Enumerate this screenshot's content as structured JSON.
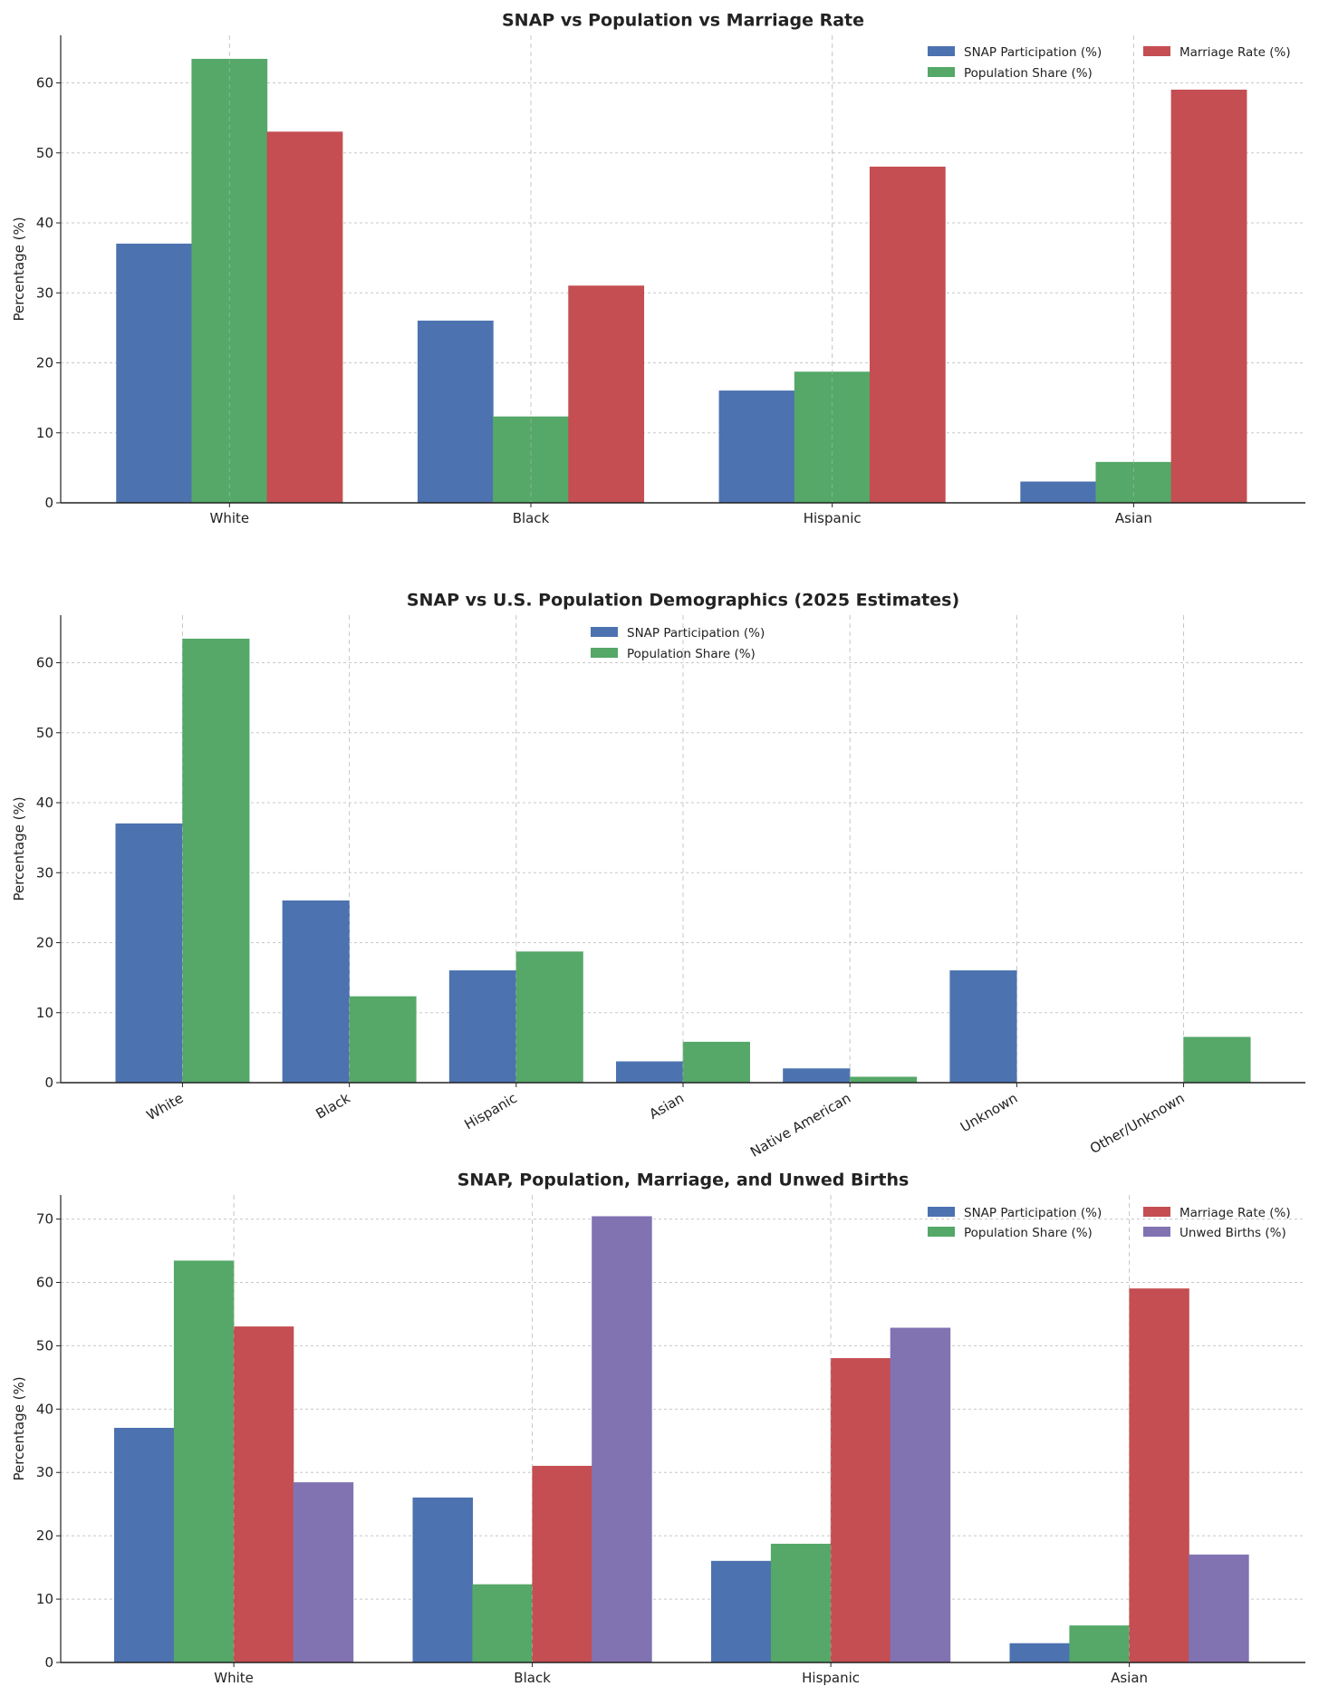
{
  "colors": {
    "SNAP Participation (%)": "#4c72b0",
    "Population Share (%)": "#55a868",
    "Marriage Rate (%)": "#c44e52",
    "Unwed Births (%)": "#8172b2"
  },
  "chart_data": [
    {
      "type": "bar",
      "title": "SNAP vs Population vs Marriage Rate",
      "xlabel": "",
      "ylabel": "Percentage (%)",
      "categories": [
        "White",
        "Black",
        "Hispanic",
        "Asian"
      ],
      "series": [
        {
          "name": "SNAP Participation (%)",
          "values": [
            37,
            26,
            16,
            3
          ]
        },
        {
          "name": "Population Share (%)",
          "values": [
            63.4,
            12.3,
            18.7,
            5.8
          ]
        },
        {
          "name": "Marriage Rate (%)",
          "values": [
            53,
            31,
            48,
            59
          ]
        }
      ],
      "ylim": [
        0,
        66.8
      ],
      "yticks": [
        0,
        10,
        20,
        30,
        40,
        50,
        60
      ],
      "grid": true,
      "legend": {
        "placement": "top-right",
        "columns": 2
      }
    },
    {
      "type": "bar",
      "title": "SNAP vs U.S. Population Demographics (2025 Estimates)",
      "xlabel": "",
      "ylabel": "Percentage (%)",
      "categories": [
        "White",
        "Black",
        "Hispanic",
        "Asian",
        "Native American",
        "Unknown",
        "Other/Unknown"
      ],
      "series": [
        {
          "name": "SNAP Participation (%)",
          "values": [
            37,
            26,
            16,
            3,
            2,
            16,
            0
          ]
        },
        {
          "name": "Population Share (%)",
          "values": [
            63.4,
            12.3,
            18.7,
            5.8,
            0.8,
            0,
            6.5
          ]
        }
      ],
      "ylim": [
        0,
        66.8
      ],
      "yticks": [
        0,
        10,
        20,
        30,
        40,
        50,
        60
      ],
      "grid": true,
      "legend": {
        "placement": "top-center",
        "columns": 1
      }
    },
    {
      "type": "bar",
      "title": "SNAP, Population, Marriage, and Unwed Births",
      "xlabel": "",
      "ylabel": "Percentage (%)",
      "categories": [
        "White",
        "Black",
        "Hispanic",
        "Asian"
      ],
      "series": [
        {
          "name": "SNAP Participation (%)",
          "values": [
            37,
            26,
            16,
            3
          ]
        },
        {
          "name": "Population Share (%)",
          "values": [
            63.4,
            12.3,
            18.7,
            5.8
          ]
        },
        {
          "name": "Marriage Rate (%)",
          "values": [
            53,
            31,
            48,
            59
          ]
        },
        {
          "name": "Unwed Births (%)",
          "values": [
            28.4,
            70.4,
            52.8,
            17
          ]
        }
      ],
      "ylim": [
        0,
        73.8
      ],
      "yticks": [
        0,
        10,
        20,
        30,
        40,
        50,
        60,
        70
      ],
      "grid": true,
      "legend": {
        "placement": "top-right",
        "columns": 2
      }
    }
  ]
}
